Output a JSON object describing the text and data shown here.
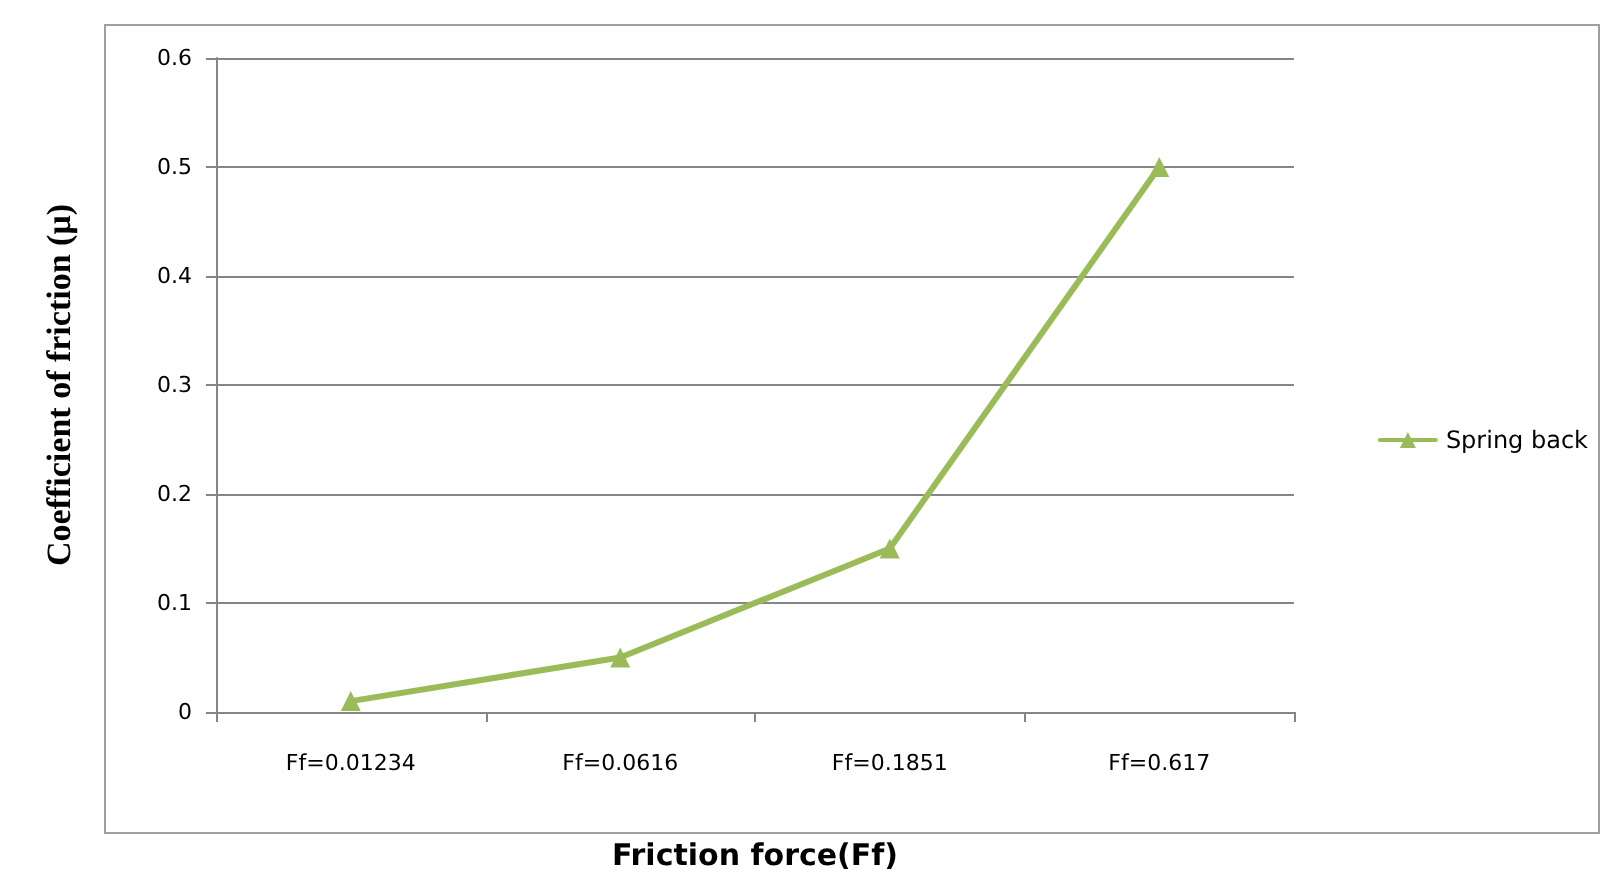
{
  "chart_data": {
    "type": "line",
    "xlabel": "Friction force(Ff)",
    "ylabel": "Coefficient of friction (μ)",
    "categories": [
      "Ff=0.01234",
      "Ff=0.0616",
      "Ff=0.1851",
      "Ff=0.617"
    ],
    "series": [
      {
        "name": "Spring back",
        "color": "#9bbb59",
        "values": [
          0.01,
          0.05,
          0.15,
          0.5
        ]
      }
    ],
    "ylim": [
      0,
      0.6
    ],
    "yticks": [
      0,
      0.1,
      0.2,
      0.3,
      0.4,
      0.5,
      0.6
    ],
    "grid": "y",
    "legend": "right",
    "marker": "triangle",
    "line_style": "solid"
  }
}
